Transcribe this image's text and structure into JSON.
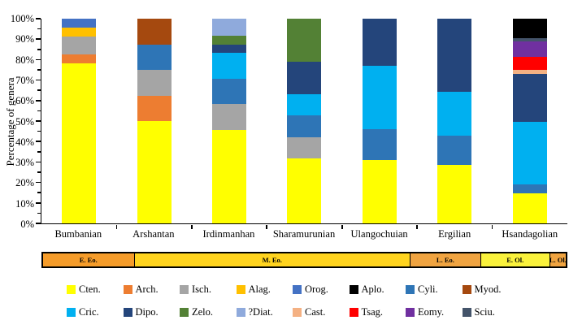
{
  "figure": {
    "y_axis": {
      "title": "Percentage of genera",
      "tick_labels": [
        "0%",
        "10%",
        "20%",
        "30%",
        "40%",
        "50%",
        "60%",
        "70%",
        "80%",
        "90%",
        "100%"
      ],
      "major_step": 10,
      "minor_step": 5,
      "min": 0,
      "max": 100
    },
    "chart_data": {
      "type": "bar",
      "subtype": "stacked-percent",
      "title": "",
      "xlabel": "",
      "ylabel": "Percentage of genera",
      "ylim": [
        0,
        100
      ],
      "grid": false,
      "legend_position": "bottom",
      "categories": [
        "Bumbanian",
        "Arshantan",
        "Irdinmanhan",
        "Sharamurunian",
        "Ulangochuian",
        "Ergilian",
        "Hsandagolian"
      ],
      "series_colors": {
        "Cten.": "#FFFF00",
        "Arch.": "#ED7D31",
        "Isch.": "#A5A5A5",
        "Alag.": "#FFC000",
        "Orog.": "#4472C4",
        "Aplo.": "#000000",
        "Cyli.": "#2E75B6",
        "Myod.": "#A5490F",
        "Cric.": "#00B0F0",
        "Dipo.": "#24457B",
        "Zelo.": "#538135",
        "?Diat.": "#8FAADC",
        "Cast.": "#F4B183",
        "Tsag.": "#FF0000",
        "Eomy.": "#7030A0",
        "Sciu.": "#44546A"
      },
      "bars": [
        {
          "category": "Bumbanian",
          "segments": [
            {
              "name": "Cten.",
              "value": 78.3
            },
            {
              "name": "Arch.",
              "value": 4.3
            },
            {
              "name": "Isch.",
              "value": 8.7
            },
            {
              "name": "Alag.",
              "value": 4.4
            },
            {
              "name": "Orog.",
              "value": 4.3
            }
          ]
        },
        {
          "category": "Arshantan",
          "segments": [
            {
              "name": "Cten.",
              "value": 50.0
            },
            {
              "name": "Arch.",
              "value": 12.5
            },
            {
              "name": "Isch.",
              "value": 12.5
            },
            {
              "name": "Cyli.",
              "value": 12.5
            },
            {
              "name": "Myod.",
              "value": 12.5
            }
          ]
        },
        {
          "category": "Irdinmanhan",
          "segments": [
            {
              "name": "Cten.",
              "value": 45.8
            },
            {
              "name": "Isch.",
              "value": 12.5
            },
            {
              "name": "Cyli.",
              "value": 12.5
            },
            {
              "name": "Cric.",
              "value": 12.5
            },
            {
              "name": "Dipo.",
              "value": 4.2
            },
            {
              "name": "Zelo.",
              "value": 4.2
            },
            {
              "name": "?Diat.",
              "value": 8.3
            }
          ]
        },
        {
          "category": "Sharamurunian",
          "segments": [
            {
              "name": "Cten.",
              "value": 31.6
            },
            {
              "name": "Isch.",
              "value": 10.5
            },
            {
              "name": "Cyli.",
              "value": 10.5
            },
            {
              "name": "Cric.",
              "value": 10.5
            },
            {
              "name": "Dipo.",
              "value": 15.8
            },
            {
              "name": "Zelo.",
              "value": 21.1
            }
          ]
        },
        {
          "category": "Ulangochuian",
          "segments": [
            {
              "name": "Cten.",
              "value": 30.8
            },
            {
              "name": "Cyli.",
              "value": 15.4
            },
            {
              "name": "Cric.",
              "value": 30.8
            },
            {
              "name": "Dipo.",
              "value": 23.0
            }
          ]
        },
        {
          "category": "Ergilian",
          "segments": [
            {
              "name": "Cten.",
              "value": 28.6
            },
            {
              "name": "Cyli.",
              "value": 14.3
            },
            {
              "name": "Cric.",
              "value": 21.4
            },
            {
              "name": "Dipo.",
              "value": 35.7
            }
          ]
        },
        {
          "category": "Hsandagolian",
          "segments": [
            {
              "name": "Cten.",
              "value": 14.5
            },
            {
              "name": "Cyli.",
              "value": 4.5
            },
            {
              "name": "Cric.",
              "value": 30.5
            },
            {
              "name": "Dipo.",
              "value": 23.5
            },
            {
              "name": "Cast.",
              "value": 2.0
            },
            {
              "name": "Tsag.",
              "value": 6.5
            },
            {
              "name": "Eomy.",
              "value": 7.5
            },
            {
              "name": "Sciu.",
              "value": 1.5
            },
            {
              "name": "Aplo.",
              "value": 9.5
            }
          ]
        }
      ]
    },
    "timeline": {
      "segments": [
        {
          "label": "E. Eo.",
          "color": "#F59C2A",
          "width_pct": 17.5
        },
        {
          "label": "M. Eo.",
          "color": "#FFD41F",
          "width_pct": 52.8
        },
        {
          "label": "L. Eo.",
          "color": "#F0A441",
          "width_pct": 13.5
        },
        {
          "label": "E. Ol.",
          "color": "#FAF23C",
          "width_pct": 13.2
        },
        {
          "label": "L. Ol.",
          "color": "#F0A441",
          "width_pct": 3.0
        }
      ]
    },
    "legend": {
      "rows": [
        [
          {
            "name": "Cten.",
            "color": "#FFFF00"
          },
          {
            "name": "Arch.",
            "color": "#ED7D31"
          },
          {
            "name": "Isch.",
            "color": "#A5A5A5"
          },
          {
            "name": "Alag.",
            "color": "#FFC000"
          },
          {
            "name": "Orog.",
            "color": "#4472C4"
          },
          {
            "name": "Aplo.",
            "color": "#000000"
          },
          {
            "name": "Cyli.",
            "color": "#2E75B6"
          },
          {
            "name": "Myod.",
            "color": "#A5490F"
          }
        ],
        [
          {
            "name": "Cric.",
            "color": "#00B0F0"
          },
          {
            "name": "Dipo.",
            "color": "#24457B"
          },
          {
            "name": "Zelo.",
            "color": "#538135"
          },
          {
            "name": "?Diat.",
            "color": "#8FAADC"
          },
          {
            "name": "Cast.",
            "color": "#F4B183"
          },
          {
            "name": "Tsag.",
            "color": "#FF0000"
          },
          {
            "name": "Eomy.",
            "color": "#7030A0"
          },
          {
            "name": "Sciu.",
            "color": "#44546A"
          }
        ]
      ]
    }
  }
}
